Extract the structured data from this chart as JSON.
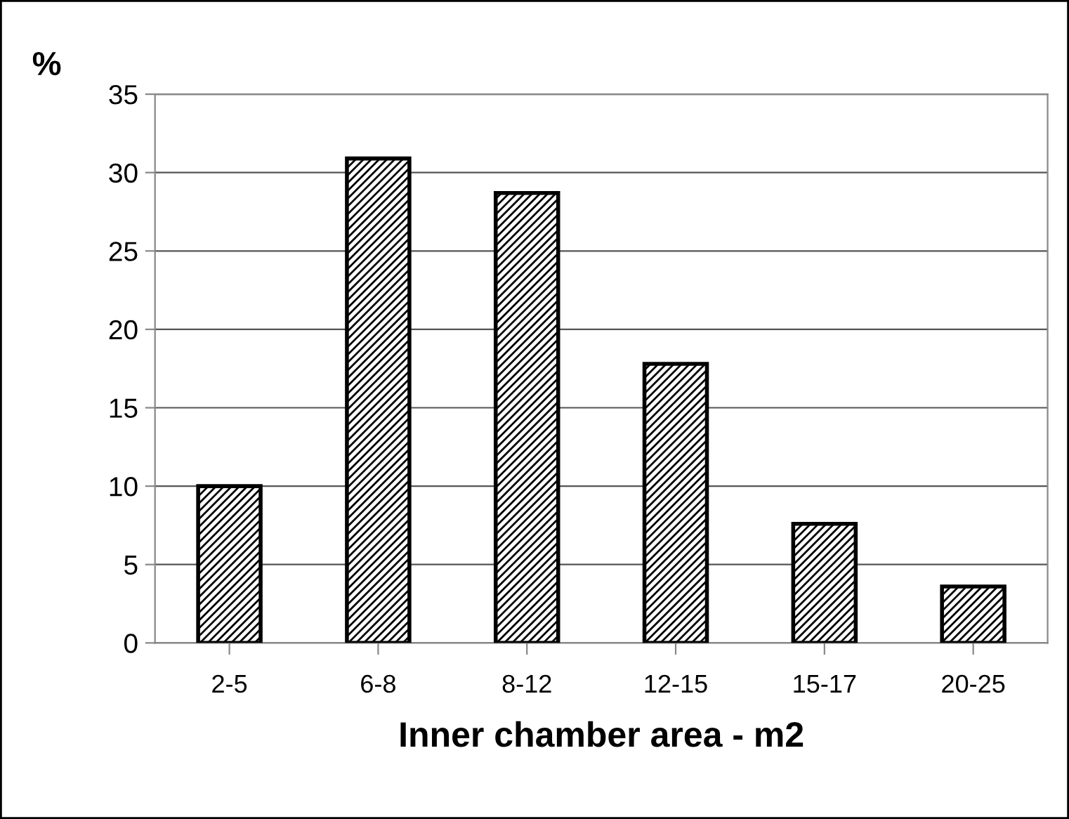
{
  "chart_data": {
    "type": "bar",
    "xlabel": "Inner chamber area - m2",
    "ylabel": "%",
    "categories": [
      "2-5",
      "6-8",
      "8-12",
      "12-15",
      "15-17",
      "20-25"
    ],
    "values": [
      10,
      30.9,
      28.7,
      17.8,
      7.6,
      3.6
    ],
    "color": "#000000",
    "ylim": [
      0,
      35
    ],
    "yticks": [
      0,
      5,
      10,
      15,
      20,
      25,
      30,
      35
    ],
    "grid": "y"
  }
}
